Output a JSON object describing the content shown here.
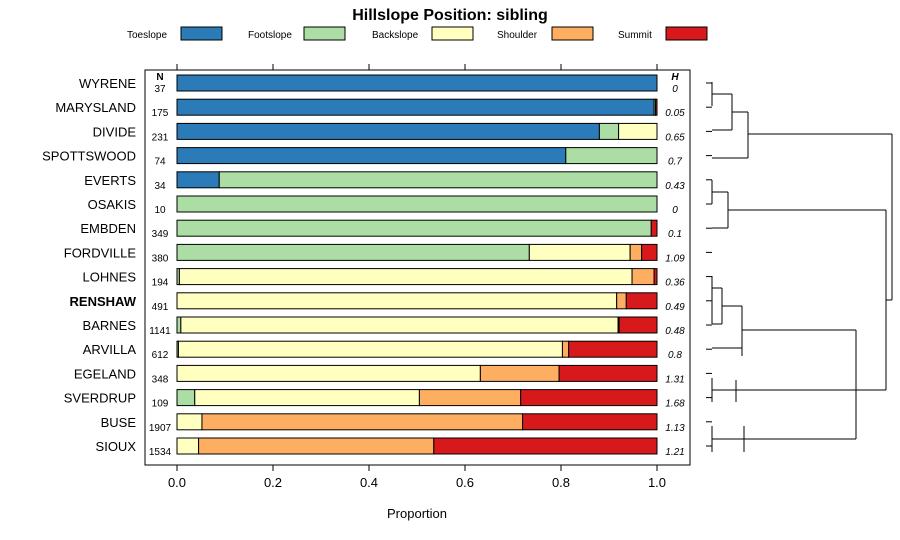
{
  "chart_data": {
    "type": "bar",
    "stacked": "horizontal-proportion",
    "title": "Hillslope Position: sibling",
    "xlabel": "Proportion",
    "ylabel": "",
    "xlim": [
      0,
      1
    ],
    "x_ticks": [
      "0.0",
      "0.2",
      "0.4",
      "0.6",
      "0.8",
      "1.0"
    ],
    "legend_position": "top",
    "legend": [
      {
        "name": "Toeslope",
        "color": "#2b7bb9"
      },
      {
        "name": "Footslope",
        "color": "#abdda4"
      },
      {
        "name": "Backslope",
        "color": "#ffffbf"
      },
      {
        "name": "Shoulder",
        "color": "#fdae61"
      },
      {
        "name": "Summit",
        "color": "#d7191c"
      }
    ],
    "n_header": "N",
    "h_header": "H",
    "rows": [
      {
        "name": "WYRENE",
        "bold": false,
        "n": "37",
        "h": "0",
        "values": [
          1.0,
          0,
          0,
          0,
          0
        ]
      },
      {
        "name": "MARYSLAND",
        "bold": false,
        "n": "175",
        "h": "0.05",
        "values": [
          0.994,
          0.003,
          0,
          0,
          0.003
        ]
      },
      {
        "name": "DIVIDE",
        "bold": false,
        "n": "231",
        "h": "0.65",
        "values": [
          0.88,
          0.04,
          0.08,
          0,
          0
        ]
      },
      {
        "name": "SPOTTSWOOD",
        "bold": false,
        "n": "74",
        "h": "0.7",
        "values": [
          0.81,
          0.19,
          0,
          0,
          0
        ]
      },
      {
        "name": "EVERTS",
        "bold": false,
        "n": "34",
        "h": "0.43",
        "values": [
          0.088,
          0.912,
          0,
          0,
          0
        ]
      },
      {
        "name": "OSAKIS",
        "bold": false,
        "n": "10",
        "h": "0",
        "values": [
          0,
          1.0,
          0,
          0,
          0
        ]
      },
      {
        "name": "EMBDEN",
        "bold": false,
        "n": "349",
        "h": "0.1",
        "values": [
          0,
          0.988,
          0,
          0,
          0.012
        ]
      },
      {
        "name": "FORDVILLE",
        "bold": false,
        "n": "380",
        "h": "1.09",
        "values": [
          0,
          0.734,
          0.21,
          0.024,
          0.032
        ]
      },
      {
        "name": "LOHNES",
        "bold": false,
        "n": "194",
        "h": "0.36",
        "values": [
          0,
          0.005,
          0.943,
          0.046,
          0.006
        ]
      },
      {
        "name": "RENSHAW",
        "bold": true,
        "n": "491",
        "h": "0.49",
        "values": [
          0,
          0,
          0.916,
          0.02,
          0.064
        ]
      },
      {
        "name": "BARNES",
        "bold": false,
        "n": "1141",
        "h": "0.48",
        "values": [
          0,
          0.008,
          0.911,
          0.002,
          0.079
        ]
      },
      {
        "name": "ARVILLA",
        "bold": false,
        "n": "612",
        "h": "0.8",
        "values": [
          0,
          0.003,
          0.8,
          0.013,
          0.184
        ]
      },
      {
        "name": "EGELAND",
        "bold": false,
        "n": "348",
        "h": "1.31",
        "values": [
          0,
          0,
          0.632,
          0.164,
          0.204
        ]
      },
      {
        "name": "SVERDRUP",
        "bold": false,
        "n": "109",
        "h": "1.68",
        "values": [
          0,
          0.037,
          0.468,
          0.211,
          0.284
        ]
      },
      {
        "name": "BUSE",
        "bold": false,
        "n": "1907",
        "h": "1.13",
        "values": [
          0,
          0,
          0.052,
          0.668,
          0.28
        ]
      },
      {
        "name": "SIOUX",
        "bold": false,
        "n": "1534",
        "h": "1.21",
        "values": [
          0,
          0,
          0.045,
          0.49,
          0.465
        ]
      }
    ]
  }
}
